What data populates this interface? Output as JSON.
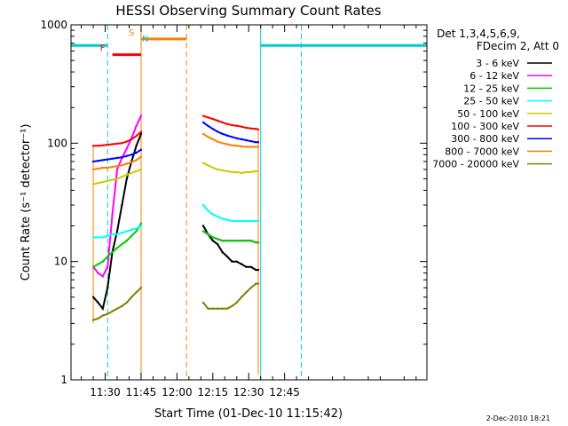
{
  "chart_data": {
    "type": "line",
    "title": "HESSI Observing Summary Count Rates",
    "xlabel": "Start Time (01-Dec-10 11:15:42)",
    "ylabel": "Count Rate (s⁻¹ detector⁻¹)",
    "yscale": "log",
    "ylim": [
      1,
      1000
    ],
    "xlim_minutes": [
      15.7,
      164.5
    ],
    "y_ticks": [
      {
        "value": 1,
        "label": "1"
      },
      {
        "value": 10,
        "label": "10"
      },
      {
        "value": 100,
        "label": "100"
      },
      {
        "value": 1000,
        "label": "1000"
      }
    ],
    "x_ticks": [
      {
        "minute": 30,
        "label": "11:30"
      },
      {
        "minute": 45,
        "label": "11:45"
      },
      {
        "minute": 60,
        "label": "12:00"
      },
      {
        "minute": 75,
        "label": "12:15"
      },
      {
        "minute": 90,
        "label": "12:30"
      },
      {
        "minute": 105,
        "label": "12:45"
      }
    ],
    "legend": {
      "position": "right",
      "header": [
        "Det 1,3,4,5,6,9,",
        "FDecim 2, Att 0"
      ]
    },
    "series": [
      {
        "name": "3 - 6 keV",
        "color": "#000000",
        "x": [
          25,
          27,
          29,
          31,
          33,
          35,
          37,
          39,
          41,
          43,
          45,
          71,
          73,
          75,
          77,
          79,
          81,
          83,
          85,
          87,
          89,
          91,
          93,
          94
        ],
        "y": [
          5,
          4.5,
          4,
          6,
          12,
          18,
          30,
          50,
          70,
          95,
          120,
          20,
          17,
          15,
          14,
          12,
          11,
          10,
          10,
          9.5,
          9,
          9,
          8.5,
          8.5
        ]
      },
      {
        "name": "6 - 12 keV",
        "color": "#ff00ff",
        "x": [
          25,
          27,
          29,
          31,
          33,
          35,
          37,
          39,
          41,
          43,
          45,
          71,
          73,
          75,
          77,
          79,
          81,
          83,
          85,
          87,
          89,
          91,
          93,
          94
        ],
        "y": [
          9,
          8,
          7.5,
          9,
          25,
          60,
          75,
          90,
          110,
          140,
          170,
          18,
          17,
          16,
          15.5,
          15,
          15,
          15,
          15,
          15,
          15,
          15,
          14.5,
          14.5
        ]
      },
      {
        "name": "12 - 25 keV",
        "color": "#00cc00",
        "x": [
          25,
          27,
          29,
          31,
          33,
          35,
          37,
          39,
          41,
          43,
          45,
          71,
          73,
          75,
          77,
          79,
          81,
          83,
          85,
          87,
          89,
          91,
          93,
          94
        ],
        "y": [
          9,
          9.5,
          10,
          11,
          12,
          13,
          14,
          15,
          16.5,
          18,
          21,
          18,
          17,
          16,
          15.5,
          15,
          15,
          15,
          15,
          15,
          15,
          15,
          14.5,
          14.5
        ]
      },
      {
        "name": "25 - 50 keV",
        "color": "#00ffff",
        "x": [
          25,
          27,
          29,
          31,
          33,
          35,
          37,
          39,
          41,
          43,
          45,
          71,
          73,
          75,
          77,
          79,
          81,
          83,
          85,
          87,
          89,
          91,
          93,
          94
        ],
        "y": [
          16,
          16,
          16,
          16.5,
          17,
          17,
          17.5,
          18,
          18.5,
          19,
          20,
          30,
          27,
          25,
          24,
          23,
          22.5,
          22,
          22,
          22,
          22,
          22,
          22,
          22
        ]
      },
      {
        "name": "50 - 100 keV",
        "color": "#cccc00",
        "x": [
          25,
          27,
          29,
          31,
          33,
          35,
          37,
          39,
          41,
          43,
          45,
          71,
          73,
          75,
          77,
          79,
          81,
          83,
          85,
          87,
          89,
          91,
          93,
          94
        ],
        "y": [
          45,
          46,
          47,
          48,
          49,
          50,
          52,
          54,
          56,
          58,
          60,
          68,
          65,
          62,
          60,
          59,
          58,
          57,
          57,
          56,
          57,
          57,
          58,
          58
        ]
      },
      {
        "name": "100 - 300 keV",
        "color": "#ff0000",
        "x": [
          25,
          27,
          29,
          31,
          33,
          35,
          37,
          39,
          41,
          43,
          45,
          71,
          73,
          75,
          77,
          79,
          81,
          83,
          85,
          87,
          89,
          91,
          93,
          94
        ],
        "y": [
          95,
          95,
          96,
          97,
          98,
          99,
          100,
          103,
          108,
          115,
          125,
          170,
          165,
          160,
          155,
          150,
          145,
          142,
          140,
          138,
          135,
          133,
          132,
          131
        ]
      },
      {
        "name": "300 - 800 keV",
        "color": "#0000ff",
        "x": [
          25,
          27,
          29,
          31,
          33,
          35,
          37,
          39,
          41,
          43,
          45,
          71,
          73,
          75,
          77,
          79,
          81,
          83,
          85,
          87,
          89,
          91,
          93,
          94
        ],
        "y": [
          70,
          71,
          72,
          73,
          74,
          75,
          76,
          78,
          80,
          83,
          88,
          150,
          140,
          132,
          125,
          120,
          116,
          113,
          110,
          108,
          106,
          104,
          102,
          102
        ]
      },
      {
        "name": "800 - 7000 keV",
        "color": "#ff7f00",
        "x": [
          25,
          27,
          29,
          31,
          33,
          35,
          37,
          39,
          41,
          43,
          45,
          71,
          73,
          75,
          77,
          79,
          81,
          83,
          85,
          87,
          89,
          91,
          93,
          94
        ],
        "y": [
          60,
          61,
          62,
          62,
          63,
          64,
          65,
          67,
          69,
          72,
          77,
          120,
          113,
          108,
          103,
          100,
          98,
          96,
          95,
          94,
          93,
          93,
          93,
          93
        ]
      },
      {
        "name": "7000 - 20000 keV",
        "color": "#808000",
        "x": [
          25,
          27,
          29,
          31,
          33,
          35,
          37,
          39,
          41,
          43,
          45,
          71,
          73,
          75,
          77,
          79,
          81,
          83,
          85,
          87,
          89,
          91,
          93,
          94
        ],
        "y": [
          3.2,
          3.3,
          3.5,
          3.6,
          3.8,
          4,
          4.2,
          4.5,
          5,
          5.5,
          6,
          4.5,
          4,
          4,
          4,
          4,
          4,
          4.2,
          4.5,
          5,
          5.5,
          6,
          6.5,
          6.5
        ]
      }
    ],
    "state_markers": [
      {
        "label": "F",
        "color": "#ff0000",
        "start": 33,
        "end": 45
      },
      {
        "label": "N",
        "color": "#00cccc",
        "start": 15.7,
        "end": 31
      },
      {
        "label": "N",
        "color": "#00cccc",
        "start": 95,
        "end": 164.5
      },
      {
        "label": "S",
        "color": "#ff7f00",
        "start": 45,
        "end": 64
      }
    ]
  },
  "footer_date": "2-Dec-2010 18:21"
}
